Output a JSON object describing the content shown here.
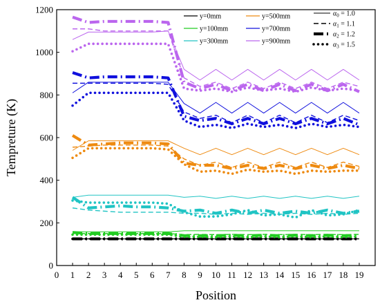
{
  "chart_data": {
    "type": "line",
    "xlabel": "Position",
    "ylabel": "Tempreture (K)",
    "xlim": [
      0,
      20
    ],
    "ylim": [
      0,
      1200
    ],
    "xticks": [
      0,
      1,
      2,
      3,
      4,
      5,
      6,
      7,
      8,
      9,
      10,
      11,
      12,
      13,
      14,
      15,
      16,
      17,
      18,
      19
    ],
    "yticks": [
      0,
      200,
      400,
      600,
      800,
      1000,
      1200
    ],
    "grid": false,
    "legend_position": "top-right",
    "x": [
      1,
      2,
      3,
      4,
      5,
      6,
      7,
      8,
      9,
      10,
      11,
      12,
      13,
      14,
      15,
      16,
      17,
      18,
      19
    ],
    "color_legend": [
      {
        "label": "y=0mm",
        "color": "#000000"
      },
      {
        "label": "y=100mm",
        "color": "#22cc22"
      },
      {
        "label": "y=300mm",
        "color": "#20c4c4"
      },
      {
        "label": "y=500mm",
        "color": "#ee8a10"
      },
      {
        "label": "y=700mm",
        "color": "#1010dd"
      },
      {
        "label": "y=900mm",
        "color": "#bb66ee"
      }
    ],
    "style_legend": [
      {
        "label": "α0 = 1.0",
        "sym": "α",
        "sub": "0",
        "eq": " = 1.0",
        "style": "solid"
      },
      {
        "label": "α1 = 1.1",
        "sym": "α",
        "sub": "1",
        "eq": " = 1.1",
        "style": "dash"
      },
      {
        "label": "α2 = 1.2",
        "sym": "α",
        "sub": "2",
        "eq": " = 1.2",
        "style": "dashdot"
      },
      {
        "label": "α3 = 1.5",
        "sym": "α",
        "sub": "3",
        "eq": " = 1.5",
        "style": "dot"
      }
    ],
    "groups": [
      {
        "label": "y=0mm",
        "color": "#000000",
        "series": [
          {
            "alpha": "α0",
            "values": [
              125,
              125,
              125,
              125,
              125,
              125,
              125,
              125,
              125,
              125,
              125,
              125,
              125,
              125,
              125,
              125,
              125,
              125,
              125
            ]
          },
          {
            "alpha": "α1",
            "values": [
              125,
              125,
              125,
              125,
              125,
              125,
              125,
              125,
              125,
              125,
              125,
              125,
              125,
              125,
              125,
              125,
              125,
              125,
              125
            ]
          },
          {
            "alpha": "α2",
            "values": [
              125,
              125,
              125,
              125,
              125,
              125,
              125,
              125,
              125,
              125,
              125,
              125,
              125,
              125,
              125,
              125,
              125,
              125,
              125
            ]
          },
          {
            "alpha": "α3",
            "values": [
              125,
              125,
              125,
              125,
              125,
              125,
              125,
              125,
              125,
              125,
              125,
              125,
              125,
              125,
              125,
              125,
              125,
              125,
              125
            ]
          }
        ]
      },
      {
        "label": "y=100mm",
        "color": "#22cc22",
        "series": [
          {
            "alpha": "α0",
            "values": [
              158,
              158,
              158,
              158,
              158,
              158,
              158,
              163,
              163,
              163,
              163,
              163,
              163,
              163,
              163,
              163,
              163,
              163,
              163
            ]
          },
          {
            "alpha": "α1",
            "values": [
              150,
              150,
              150,
              150,
              150,
              150,
              150,
              145,
              146,
              145,
              146,
              145,
              146,
              145,
              146,
              145,
              146,
              145,
              146
            ]
          },
          {
            "alpha": "α2",
            "values": [
              155,
              150,
              150,
              150,
              150,
              150,
              150,
              140,
              140,
              140,
              142,
              140,
              142,
              140,
              142,
              140,
              142,
              140,
              142
            ]
          },
          {
            "alpha": "α3",
            "values": [
              145,
              145,
              145,
              145,
              145,
              145,
              145,
              135,
              135,
              133,
              137,
              133,
              137,
              133,
              137,
              133,
              137,
              133,
              137
            ]
          }
        ]
      },
      {
        "label": "y=300mm",
        "color": "#20c4c4",
        "series": [
          {
            "alpha": "α0",
            "values": [
              320,
              330,
              330,
              330,
              330,
              330,
              330,
              320,
              325,
              315,
              325,
              315,
              325,
              315,
              325,
              315,
              325,
              315,
              325
            ]
          },
          {
            "alpha": "α1",
            "values": [
              270,
              260,
              255,
              250,
              250,
              250,
              250,
              245,
              245,
              240,
              245,
              240,
              245,
              240,
              245,
              240,
              245,
              240,
              245
            ]
          },
          {
            "alpha": "α2",
            "values": [
              320,
              270,
              275,
              280,
              275,
              275,
              270,
              255,
              260,
              245,
              260,
              245,
              260,
              245,
              255,
              245,
              260,
              245,
              255
            ]
          },
          {
            "alpha": "α3",
            "values": [
              305,
              295,
              295,
              295,
              295,
              295,
              290,
              250,
              230,
              230,
              240,
              260,
              235,
              240,
              225,
              260,
              235,
              240,
              260
            ]
          }
        ]
      },
      {
        "label": "y=500mm",
        "color": "#ee8a10",
        "series": [
          {
            "alpha": "α0",
            "values": [
              540,
              585,
              585,
              585,
              585,
              585,
              585,
              550,
              520,
              550,
              520,
              550,
              520,
              550,
              520,
              550,
              520,
              550,
              520
            ]
          },
          {
            "alpha": "α1",
            "values": [
              555,
              560,
              565,
              565,
              565,
              565,
              560,
              500,
              470,
              485,
              460,
              485,
              460,
              485,
              460,
              485,
              460,
              485,
              465
            ]
          },
          {
            "alpha": "α2",
            "values": [
              610,
              565,
              570,
              575,
              575,
              575,
              570,
              480,
              470,
              470,
              455,
              470,
              455,
              470,
              455,
              470,
              455,
              470,
              455
            ]
          },
          {
            "alpha": "α3",
            "values": [
              505,
              550,
              550,
              550,
              550,
              550,
              545,
              475,
              440,
              445,
              430,
              450,
              440,
              445,
              430,
              445,
              440,
              445,
              445
            ]
          }
        ]
      },
      {
        "label": "y=700mm",
        "color": "#1010dd",
        "series": [
          {
            "alpha": "α0",
            "values": [
              810,
              860,
              860,
              860,
              860,
              860,
              860,
              760,
              715,
              765,
              715,
              765,
              715,
              765,
              715,
              765,
              715,
              765,
              715
            ]
          },
          {
            "alpha": "α1",
            "values": [
              855,
              855,
              855,
              855,
              855,
              855,
              850,
              720,
              690,
              705,
              670,
              705,
              670,
              705,
              670,
              705,
              670,
              705,
              680
            ]
          },
          {
            "alpha": "α2",
            "values": [
              905,
              880,
              885,
              885,
              885,
              885,
              880,
              700,
              680,
              690,
              665,
              690,
              665,
              690,
              665,
              690,
              665,
              690,
              660
            ]
          },
          {
            "alpha": "α3",
            "values": [
              750,
              810,
              810,
              810,
              810,
              810,
              810,
              680,
              650,
              660,
              645,
              665,
              650,
              660,
              645,
              665,
              650,
              660,
              650
            ]
          }
        ]
      },
      {
        "label": "y=900mm",
        "color": "#bb66ee",
        "series": [
          {
            "alpha": "α0",
            "values": [
              1060,
              1095,
              1095,
              1095,
              1095,
              1095,
              1100,
              920,
              870,
              920,
              870,
              920,
              870,
              920,
              870,
              920,
              870,
              920,
              870
            ]
          },
          {
            "alpha": "α1",
            "values": [
              1110,
              1110,
              1100,
              1100,
              1100,
              1100,
              1100,
              880,
              840,
              860,
              830,
              860,
              830,
              860,
              830,
              860,
              830,
              860,
              840
            ]
          },
          {
            "alpha": "α2",
            "values": [
              1165,
              1140,
              1145,
              1145,
              1145,
              1145,
              1140,
              860,
              830,
              850,
              820,
              850,
              820,
              850,
              820,
              850,
              820,
              850,
              815
            ]
          },
          {
            "alpha": "α3",
            "values": [
              1005,
              1040,
              1040,
              1040,
              1040,
              1040,
              1040,
              830,
              820,
              830,
              815,
              835,
              820,
              830,
              815,
              835,
              820,
              830,
              820
            ]
          }
        ]
      }
    ]
  }
}
